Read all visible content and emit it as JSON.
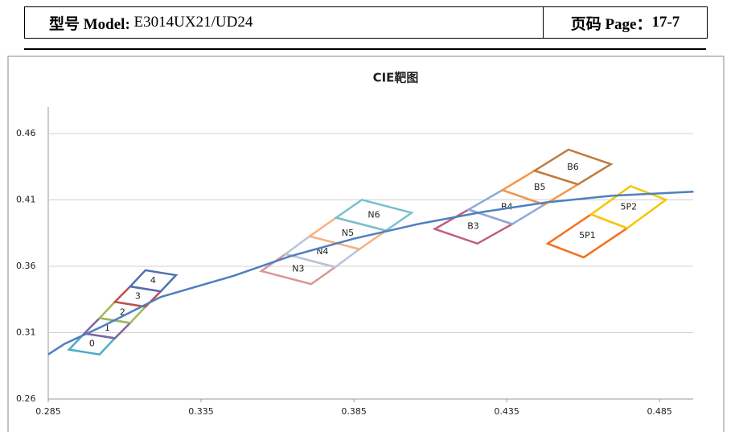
{
  "header": {
    "model_label": "型号 Model:",
    "model": "E3014UX21/UD24",
    "page_label": "页码 Page：",
    "page": "17-7"
  },
  "chart_data": {
    "type": "cie",
    "title": "CIE靶图",
    "xlim": [
      0.285,
      0.496
    ],
    "ylim": [
      0.26,
      0.48
    ],
    "xticks": [
      0.285,
      0.335,
      0.385,
      0.435,
      0.485
    ],
    "yticks": [
      0.26,
      0.31,
      0.36,
      0.41,
      0.46
    ],
    "grid": true,
    "locus": {
      "color": "#4f7fbf",
      "x": [
        0.285,
        0.2903,
        0.3034,
        0.3218,
        0.3455,
        0.3639,
        0.385,
        0.406,
        0.4271,
        0.4481,
        0.4692,
        0.4961
      ],
      "y": [
        0.2936,
        0.3015,
        0.3155,
        0.3369,
        0.3527,
        0.3674,
        0.3808,
        0.3918,
        0.4009,
        0.4082,
        0.4131,
        0.4162
      ]
    },
    "series": [
      {
        "name": "0",
        "color": "#4bacc6",
        "x": [
          0.2918,
          0.3018,
          0.3068,
          0.2968
        ],
        "y": [
          0.2972,
          0.2936,
          0.3058,
          0.3094
        ]
      },
      {
        "name": "1",
        "color": "#8064a2",
        "x": [
          0.2968,
          0.3068,
          0.3118,
          0.3018
        ],
        "y": [
          0.3094,
          0.3058,
          0.3173,
          0.321
        ]
      },
      {
        "name": "2",
        "color": "#9bbb59",
        "x": [
          0.3018,
          0.3118,
          0.3168,
          0.3068
        ],
        "y": [
          0.321,
          0.3173,
          0.3295,
          0.3332
        ]
      },
      {
        "name": "3",
        "color": "#c0504d",
        "x": [
          0.3068,
          0.3168,
          0.3218,
          0.3118
        ],
        "y": [
          0.3332,
          0.3295,
          0.3411,
          0.3448
        ]
      },
      {
        "name": "4",
        "color": "#4f6fb0",
        "x": [
          0.3118,
          0.3218,
          0.3268,
          0.3168
        ],
        "y": [
          0.3448,
          0.3411,
          0.3533,
          0.357
        ]
      },
      {
        "name": "N3",
        "color": "#d99694",
        "x": [
          0.3547,
          0.371,
          0.3789,
          0.3626
        ],
        "y": [
          0.3564,
          0.3466,
          0.3594,
          0.3692
        ]
      },
      {
        "name": "N4",
        "color": "#b7c4dd",
        "x": [
          0.3626,
          0.3789,
          0.3868,
          0.3705
        ],
        "y": [
          0.3692,
          0.3594,
          0.3729,
          0.3826
        ]
      },
      {
        "name": "N5",
        "color": "#f9b080",
        "x": [
          0.3705,
          0.3868,
          0.3955,
          0.3792
        ],
        "y": [
          0.3826,
          0.3729,
          0.3869,
          0.3966
        ]
      },
      {
        "name": "N6",
        "color": "#78c0d0",
        "x": [
          0.3792,
          0.3955,
          0.4039,
          0.3876
        ],
        "y": [
          0.3966,
          0.3869,
          0.4003,
          0.4101
        ]
      },
      {
        "name": "B3",
        "color": "#c0607d",
        "x": [
          0.4115,
          0.4254,
          0.4368,
          0.4225
        ],
        "y": [
          0.3881,
          0.3771,
          0.3918,
          0.4027
        ]
      },
      {
        "name": "B4",
        "color": "#8ea9db",
        "x": [
          0.4225,
          0.4368,
          0.4473,
          0.4336
        ],
        "y": [
          0.4027,
          0.3918,
          0.4064,
          0.4174
        ]
      },
      {
        "name": "B5",
        "color": "#f79646",
        "x": [
          0.4336,
          0.4473,
          0.4583,
          0.4441
        ],
        "y": [
          0.4174,
          0.4064,
          0.4217,
          0.432
        ]
      },
      {
        "name": "B6",
        "color": "#c07a3d",
        "x": [
          0.4441,
          0.4583,
          0.4691,
          0.4552
        ],
        "y": [
          0.432,
          0.4217,
          0.4369,
          0.4479
        ]
      },
      {
        "name": "5P1",
        "color": "#f4701e",
        "x": [
          0.4484,
          0.4602,
          0.4744,
          0.4626
        ],
        "y": [
          0.3771,
          0.3667,
          0.3887,
          0.3991
        ]
      },
      {
        "name": "5P2",
        "color": "#f5c700",
        "x": [
          0.4626,
          0.4744,
          0.4871,
          0.4755
        ],
        "y": [
          0.3991,
          0.3887,
          0.4101,
          0.4204
        ]
      }
    ]
  }
}
